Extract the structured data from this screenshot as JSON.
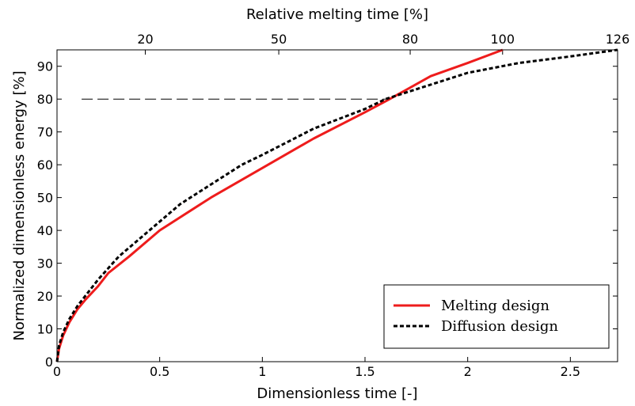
{
  "chart_data": {
    "type": "line",
    "xlabel": "Dimensionless time [-]",
    "ylabel": "Normalized dimensionless energy [%]",
    "top_xlabel": "Relative melting time [%]",
    "xlim": [
      0,
      2.73
    ],
    "ylim": [
      0,
      95
    ],
    "x_ticks": [
      0,
      0.5,
      1,
      1.5,
      2,
      2.5
    ],
    "x_tick_labels": [
      "0",
      "0.5",
      "1",
      "1.5",
      "2",
      "2.5"
    ],
    "y_ticks": [
      0,
      10,
      20,
      30,
      40,
      50,
      60,
      70,
      80,
      90
    ],
    "y_tick_labels": [
      "0",
      "10",
      "20",
      "30",
      "40",
      "50",
      "60",
      "70",
      "80",
      "90"
    ],
    "top_ticks": [
      {
        "x": 0.43,
        "label": "20"
      },
      {
        "x": 1.08,
        "label": "50"
      },
      {
        "x": 1.72,
        "label": "80"
      },
      {
        "x": 2.17,
        "label": "100"
      },
      {
        "x": 2.73,
        "label": "126"
      }
    ],
    "reference_line": {
      "y": 80,
      "x_start": 0.12,
      "x_end": 1.6,
      "style": "dashed"
    },
    "grid": false,
    "legend_position": "lower-right",
    "series": [
      {
        "name": "Melting design",
        "color": "#ee1c1c",
        "style": "solid",
        "x": [
          0,
          0.01,
          0.03,
          0.06,
          0.1,
          0.14,
          0.2,
          0.25,
          0.35,
          0.5,
          0.75,
          1.0,
          1.25,
          1.5,
          1.62,
          1.82,
          2.0,
          2.17
        ],
        "y": [
          0,
          4,
          8,
          12,
          16,
          19,
          23,
          27,
          32,
          40,
          50,
          59,
          68,
          76,
          80,
          87,
          91,
          95
        ]
      },
      {
        "name": "Diffusion design",
        "color": "#000000",
        "style": "dashed",
        "x": [
          0,
          0.01,
          0.03,
          0.06,
          0.1,
          0.15,
          0.2,
          0.3,
          0.45,
          0.6,
          0.75,
          0.9,
          1.0,
          1.25,
          1.5,
          1.6,
          1.8,
          2.0,
          2.25,
          2.5,
          2.73
        ],
        "y": [
          0,
          5,
          9,
          13,
          17,
          21,
          25,
          32,
          40,
          48,
          54,
          60,
          63,
          71,
          77,
          80,
          84,
          88,
          91,
          93,
          95
        ]
      }
    ]
  }
}
